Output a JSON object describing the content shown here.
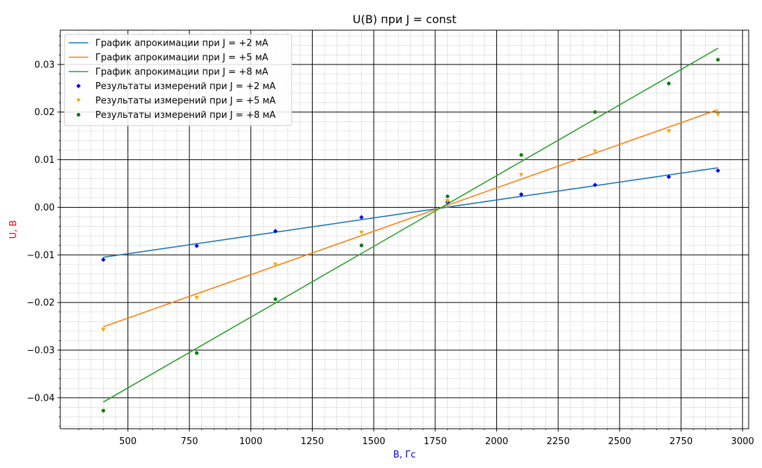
{
  "chart_data": {
    "type": "scatter",
    "title": "U(B) при J = const",
    "xlabel": "B, Гс",
    "ylabel": "U, В",
    "xlabel_color": "#0000cc",
    "ylabel_color": "#e8000b",
    "xlim": [
      225,
      3025
    ],
    "ylim": [
      -0.0465,
      0.0372
    ],
    "xticks": [
      {
        "value": 500,
        "label": "500"
      },
      {
        "value": 750,
        "label": "750"
      },
      {
        "value": 1000,
        "label": "1000"
      },
      {
        "value": 1250,
        "label": "1250"
      },
      {
        "value": 1500,
        "label": "1500"
      },
      {
        "value": 1750,
        "label": "1750"
      },
      {
        "value": 2000,
        "label": "2000"
      },
      {
        "value": 2250,
        "label": "2250"
      },
      {
        "value": 2500,
        "label": "2500"
      },
      {
        "value": 2750,
        "label": "2750"
      },
      {
        "value": 3000,
        "label": "3000"
      }
    ],
    "yticks": [
      {
        "value": -0.04,
        "label": "−0.04"
      },
      {
        "value": -0.03,
        "label": "−0.03"
      },
      {
        "value": -0.02,
        "label": "−0.02"
      },
      {
        "value": -0.01,
        "label": "−0.01"
      },
      {
        "value": 0.0,
        "label": "0.00"
      },
      {
        "value": 0.01,
        "label": "0.01"
      },
      {
        "value": 0.02,
        "label": "0.02"
      },
      {
        "value": 0.03,
        "label": "0.03"
      }
    ],
    "grid": true,
    "minor_grid": true,
    "legend_position": "top-left",
    "lines": [
      {
        "name": "График апрокимации при J = +2 мА",
        "color": "#1f77b4",
        "x": [
          400,
          2900
        ],
        "y": [
          -0.0105,
          0.0083
        ]
      },
      {
        "name": "График апрокимации при J = +5 мА",
        "color": "#ff7f0e",
        "x": [
          400,
          2900
        ],
        "y": [
          -0.0251,
          0.0205
        ]
      },
      {
        "name": "График апрокимации при J = +8 мА",
        "color": "#2ca02c",
        "x": [
          400,
          2900
        ],
        "y": [
          -0.0409,
          0.0334
        ]
      }
    ],
    "series": [
      {
        "name": "Результаты измерений при J = +2 мА",
        "color": "#0000ee",
        "marker": "diamond",
        "x": [
          400,
          780,
          1100,
          1450,
          1800,
          2100,
          2400,
          2700,
          2900
        ],
        "y": [
          -0.011,
          -0.0081,
          -0.005,
          -0.0021,
          0.0011,
          0.0027,
          0.0047,
          0.0064,
          0.0077
        ]
      },
      {
        "name": "Результаты измерений при J = +5 мА",
        "color": "#ffa500",
        "marker": "triangle-down",
        "x": [
          400,
          780,
          1100,
          1450,
          1800,
          2100,
          2400,
          2700,
          2900
        ],
        "y": [
          -0.0257,
          -0.019,
          -0.012,
          -0.0053,
          0.0013,
          0.0068,
          0.0118,
          0.016,
          0.0195
        ]
      },
      {
        "name": "Результаты измерений при J = +8 мА",
        "color": "#008000",
        "marker": "circle",
        "x": [
          400,
          780,
          1100,
          1450,
          1800,
          2100,
          2400,
          2700,
          2900
        ],
        "y": [
          -0.0427,
          -0.0306,
          -0.0193,
          -0.008,
          0.0023,
          0.011,
          0.02,
          0.026,
          0.031
        ]
      }
    ]
  }
}
